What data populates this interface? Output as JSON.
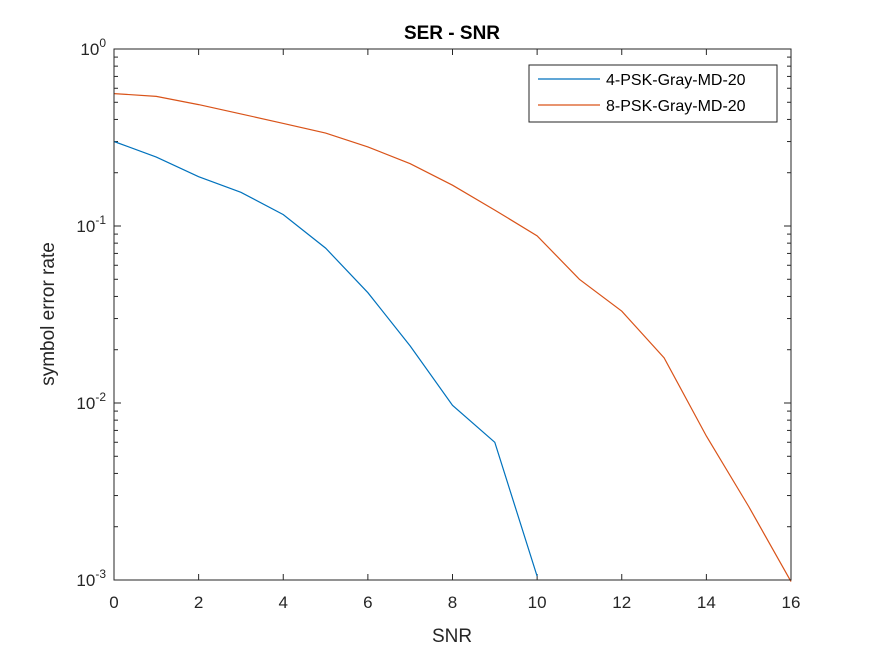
{
  "chart_data": {
    "type": "line",
    "title": "SER - SNR",
    "xlabel": "SNR",
    "ylabel": "symbol error rate",
    "xlim": [
      0,
      16
    ],
    "ylim": [
      0.001,
      1
    ],
    "yscale": "log",
    "grid": false,
    "legend_position": "top-right",
    "x_ticks": [
      0,
      2,
      4,
      6,
      8,
      10,
      12,
      14,
      16
    ],
    "x_tick_labels": [
      "0",
      "2",
      "4",
      "6",
      "8",
      "10",
      "12",
      "14",
      "16"
    ],
    "y_ticks": [
      {
        "value": 1,
        "base": "10",
        "exp": "0"
      },
      {
        "value": 0.1,
        "base": "10",
        "exp": "-1"
      },
      {
        "value": 0.01,
        "base": "10",
        "exp": "-2"
      },
      {
        "value": 0.001,
        "base": "10",
        "exp": "-3"
      }
    ],
    "series": [
      {
        "name": "4-PSK-Gray-MD-20",
        "color": "#0072BD",
        "x": [
          0,
          1,
          2,
          3,
          4,
          5,
          6,
          7,
          8,
          9,
          10
        ],
        "y": [
          0.3,
          0.245,
          0.19,
          0.155,
          0.116,
          0.075,
          0.042,
          0.021,
          0.0097,
          0.006,
          0.00105
        ]
      },
      {
        "name": "8-PSK-Gray-MD-20",
        "color": "#D95319",
        "x": [
          0,
          1,
          2,
          3,
          4,
          5,
          6,
          7,
          8,
          9,
          10,
          11,
          12,
          13,
          14,
          15,
          16
        ],
        "y": [
          0.56,
          0.54,
          0.485,
          0.43,
          0.38,
          0.335,
          0.28,
          0.225,
          0.17,
          0.123,
          0.088,
          0.05,
          0.033,
          0.018,
          0.0065,
          0.0026,
          0.00098
        ]
      }
    ]
  }
}
